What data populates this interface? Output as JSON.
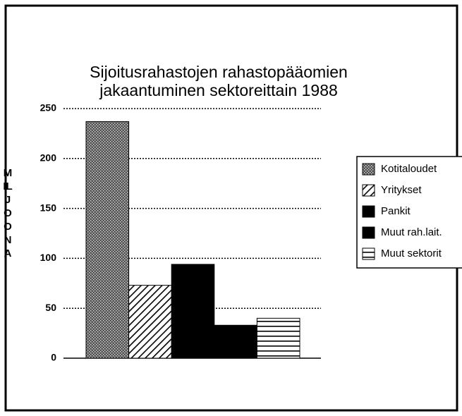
{
  "chart_data": {
    "type": "bar",
    "title": [
      "Sijoitusrahastojen rahastopääomien",
      "jakaantuminen sektoreittain  1988"
    ],
    "y_label": "MILJOONA",
    "categories": [
      "Kotitaloudet",
      "Yritykset",
      "Pankit",
      "Muut rah.lait.",
      "Muut sektorit"
    ],
    "values": [
      237,
      73,
      94,
      33,
      40
    ],
    "colors": [
      "#555555",
      "#000000",
      "#000000",
      "#000000",
      "#000000"
    ],
    "patterns": [
      "dots",
      "diagonal",
      "solid",
      "solid",
      "horizontal"
    ],
    "ylim": [
      0,
      250
    ],
    "yticks": [
      0,
      50,
      100,
      150,
      200,
      250
    ],
    "grid": true,
    "legend": "right"
  }
}
